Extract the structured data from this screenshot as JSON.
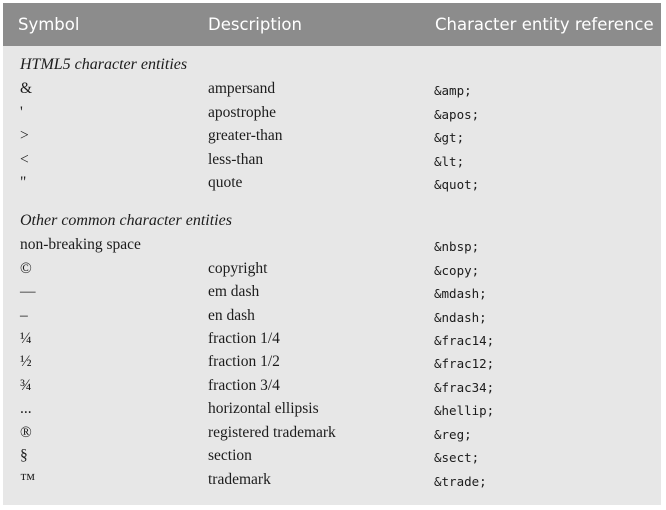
{
  "header": {
    "symbol": "Symbol",
    "description": "Description",
    "reference": "Character entity reference"
  },
  "sections": [
    {
      "title": "HTML5 character entities",
      "rows": [
        {
          "symbol": "&",
          "description": "ampersand",
          "reference": "&amp;"
        },
        {
          "symbol": "'",
          "description": "apostrophe",
          "reference": "&apos;"
        },
        {
          "symbol": ">",
          "description": "greater-than",
          "reference": "&gt;"
        },
        {
          "symbol": "<",
          "description": "less-than",
          "reference": "&lt;"
        },
        {
          "symbol": "\"",
          "description": "quote",
          "reference": "&quot;"
        }
      ]
    },
    {
      "title": "Other common character entities",
      "rows": [
        {
          "symbol": "non-breaking space",
          "description": "",
          "reference": "&nbsp;"
        },
        {
          "symbol": "©",
          "description": "copyright",
          "reference": "&copy;"
        },
        {
          "symbol": "—",
          "description": "em dash",
          "reference": "&mdash;"
        },
        {
          "symbol": "–",
          "description": "en dash",
          "reference": "&ndash;"
        },
        {
          "symbol": "¼",
          "description": "fraction 1/4",
          "reference": "&frac14;"
        },
        {
          "symbol": "½",
          "description": "fraction 1/2",
          "reference": "&frac12;"
        },
        {
          "symbol": "¾",
          "description": "fraction 3/4",
          "reference": "&frac34;"
        },
        {
          "symbol": "...",
          "description": "horizontal ellipsis",
          "reference": "&hellip;"
        },
        {
          "symbol": "®",
          "description": "registered trademark",
          "reference": "&reg;"
        },
        {
          "symbol": "§",
          "description": "section",
          "reference": "&sect;"
        },
        {
          "symbol": "™",
          "description": "trademark",
          "reference": "&trade;"
        }
      ]
    }
  ]
}
